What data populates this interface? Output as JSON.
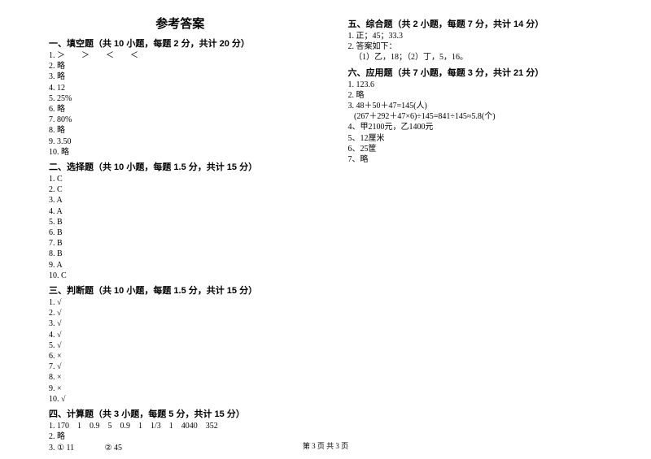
{
  "title": "参考答案",
  "footer": "第 3 页 共 3 页",
  "sections": {
    "s1": {
      "head": "一、填空题（共 10 小题，每题 2 分，共计 20 分）",
      "lines": [
        "1. ＞　　＞　　＜　　＜",
        "2. 略",
        "3. 略",
        "4. 12",
        "5. 25%",
        "6. 略",
        "7. 80%",
        "8. 略",
        "9. 3.50",
        "10. 略"
      ]
    },
    "s2": {
      "head": "二、选择题（共 10 小题，每题 1.5 分，共计 15 分）",
      "lines": [
        "1. C",
        "2. C",
        "3. A",
        "4. A",
        "5. B",
        "6. B",
        "7. B",
        "8. B",
        "9. A",
        "10. C"
      ]
    },
    "s3": {
      "head": "三、判断题（共 10 小题，每题 1.5 分，共计 15 分）",
      "lines": [
        "1. √",
        "2. √",
        "3. √",
        "4. √",
        "5. √",
        "6. ×",
        "7. √",
        "8. ×",
        "9. ×",
        "10. √"
      ]
    },
    "s4": {
      "head": "四、计算题（共 3 小题，每题 5 分，共计 15 分）",
      "lines": [
        "1. 170    1    0.9    5    0.9    1    1/3    1    4040    352",
        "2. 略",
        "3. ① 11               ② 45"
      ]
    },
    "s5": {
      "head": "五、综合题（共 2 小题，每题 7 分，共计 14 分）",
      "lines": [
        "1. 正；45；33.3",
        "2. 答案如下：",
        "   （1）乙，18；（2）丁，5，16。"
      ]
    },
    "s6": {
      "head": "六、应用题（共 7 小题，每题 3 分，共计 21 分）",
      "lines": [
        "1. 123.6",
        "2. 略",
        "3. 48＋50＋47=145(人)",
        "   (267＋292＋47×6)÷145=841÷145≈5.8(个)",
        "4、甲2100元，乙1400元",
        "5、12厘米",
        "6、25筐",
        "7、略"
      ]
    }
  }
}
